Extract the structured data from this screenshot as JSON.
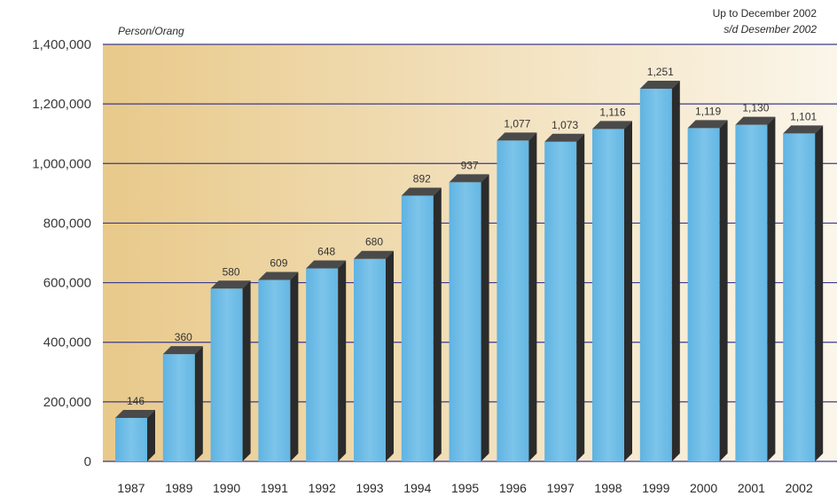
{
  "chart_data": {
    "type": "bar",
    "unit_label": "Person/Orang",
    "note_line1": "Up to December 2002",
    "note_line2": "s/d Desember 2002",
    "categories": [
      "1987",
      "1989",
      "1990",
      "1991",
      "1992",
      "1993",
      "1994",
      "1995",
      "1996",
      "1997",
      "1998",
      "1999",
      "2000",
      "2001",
      "2002"
    ],
    "values": [
      146000,
      360000,
      580000,
      609000,
      648000,
      680000,
      892000,
      937000,
      1077000,
      1073000,
      1116000,
      1251000,
      1119000,
      1130000,
      1101000
    ],
    "value_labels": [
      "146",
      "360",
      "580",
      "609",
      "648",
      "680",
      "892",
      "937",
      "1,077",
      "1,073",
      "1,116",
      "1,251",
      "1,119",
      "1,130",
      "1,101"
    ],
    "yticks": [
      0,
      200000,
      400000,
      600000,
      800000,
      1000000,
      1200000,
      1400000
    ],
    "ytick_labels": [
      "0",
      "200,000",
      "400,000",
      "600,000",
      "800,000",
      "1,000,000",
      "1,200,000",
      "1,400,000"
    ],
    "ylim": [
      0,
      1400000
    ],
    "grid": true,
    "colors": {
      "bar_front": "#7cc4ea",
      "bar_top": "#4a4a4a",
      "bar_side": "#2b2b2b",
      "grid": "#3c3a8a",
      "bg_left": "#e8c98a",
      "bg_right": "#fbf6ea"
    }
  }
}
